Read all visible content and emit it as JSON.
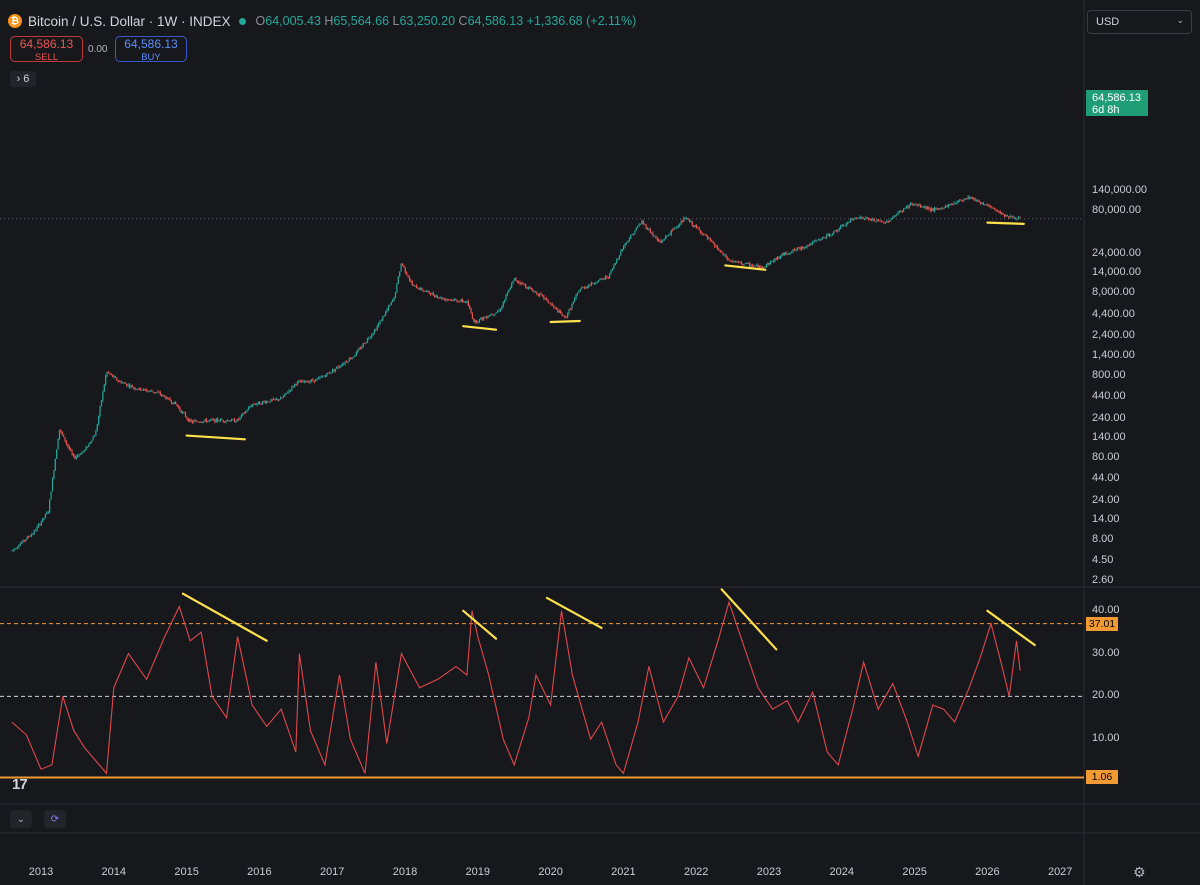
{
  "header": {
    "symbol": "Bitcoin / U.S. Dollar · 1W · INDEX",
    "open_key": "O",
    "open": "64,005.43",
    "high_key": "H",
    "high": "65,564.66",
    "low_key": "L",
    "low": "63,250.20",
    "close_key": "C",
    "close": "64,586.13",
    "change": "+1,336.68 (+2.11%)"
  },
  "trade": {
    "sell_price": "64,586.13",
    "sell_label": "SELL",
    "spread": "0.00",
    "buy_price": "64,586.13",
    "buy_label": "BUY"
  },
  "indicators_count": "6",
  "currency": "USD",
  "logo_text": "17",
  "price_tag": {
    "price": "64,586.13",
    "countdown": "6d 8h"
  },
  "colors": {
    "up": "#26a69a",
    "down": "#ef5350",
    "annotation": "#ffe14d",
    "level": "#f19933",
    "background": "#17181c"
  },
  "chart_data": [
    {
      "type": "candlestick",
      "scale": "log",
      "x_range": [
        2012.6,
        2027.5
      ],
      "y_ticks": [
        "140,000.00",
        "80,000.00",
        "24,000.00",
        "14,000.00",
        "8,000.00",
        "4,400.00",
        "2,400.00",
        "1,400.00",
        "800.00",
        "440.00",
        "240.00",
        "140.00",
        "80.00",
        "44.00",
        "24.00",
        "14.00",
        "8.00",
        "4.50",
        "2.60"
      ],
      "last_price": 64586.13,
      "price_path": [
        [
          2012.6,
          6
        ],
        [
          2012.9,
          10
        ],
        [
          2013.1,
          18
        ],
        [
          2013.25,
          180
        ],
        [
          2013.45,
          80
        ],
        [
          2013.6,
          100
        ],
        [
          2013.75,
          160
        ],
        [
          2013.9,
          900
        ],
        [
          2014.05,
          700
        ],
        [
          2014.3,
          560
        ],
        [
          2014.6,
          500
        ],
        [
          2014.85,
          360
        ],
        [
          2015.05,
          220
        ],
        [
          2015.4,
          230
        ],
        [
          2015.7,
          230
        ],
        [
          2015.9,
          360
        ],
        [
          2016.3,
          420
        ],
        [
          2016.5,
          650
        ],
        [
          2016.8,
          720
        ],
        [
          2017.0,
          920
        ],
        [
          2017.3,
          1400
        ],
        [
          2017.6,
          3000
        ],
        [
          2017.85,
          7000
        ],
        [
          2017.95,
          19000
        ],
        [
          2018.1,
          10000
        ],
        [
          2018.5,
          7000
        ],
        [
          2018.85,
          6300
        ],
        [
          2018.95,
          3600
        ],
        [
          2019.3,
          5000
        ],
        [
          2019.5,
          12000
        ],
        [
          2019.9,
          7200
        ],
        [
          2020.2,
          4000
        ],
        [
          2020.4,
          9000
        ],
        [
          2020.8,
          13000
        ],
        [
          2021.0,
          30000
        ],
        [
          2021.25,
          60000
        ],
        [
          2021.5,
          33000
        ],
        [
          2021.85,
          66000
        ],
        [
          2022.1,
          42000
        ],
        [
          2022.45,
          20000
        ],
        [
          2022.9,
          16500
        ],
        [
          2023.2,
          24000
        ],
        [
          2023.5,
          30000
        ],
        [
          2023.85,
          42000
        ],
        [
          2024.2,
          68000
        ],
        [
          2024.6,
          58000
        ],
        [
          2024.95,
          98000
        ],
        [
          2025.3,
          82000
        ],
        [
          2025.75,
          120000
        ],
        [
          2026.05,
          88000
        ],
        [
          2026.3,
          68000
        ],
        [
          2026.45,
          64586.13
        ]
      ],
      "annotations": [
        {
          "from": [
            2015.0,
            150
          ],
          "to": [
            2015.8,
            135
          ]
        },
        {
          "from": [
            2018.8,
            3200
          ],
          "to": [
            2019.25,
            2900
          ]
        },
        {
          "from": [
            2020.0,
            3600
          ],
          "to": [
            2020.4,
            3700
          ]
        },
        {
          "from": [
            2022.4,
            17500
          ],
          "to": [
            2022.95,
            15500
          ]
        },
        {
          "from": [
            2026.0,
            58000
          ],
          "to": [
            2026.5,
            56000
          ]
        }
      ]
    },
    {
      "type": "line",
      "series": [
        {
          "values": [
            [
              2012.6,
              14
            ],
            [
              2012.8,
              11
            ],
            [
              2013.0,
              3
            ],
            [
              2013.15,
              4
            ],
            [
              2013.3,
              20
            ],
            [
              2013.45,
              12
            ],
            [
              2013.6,
              8
            ],
            [
              2013.75,
              5
            ],
            [
              2013.9,
              2
            ],
            [
              2014.0,
              22
            ],
            [
              2014.2,
              30
            ],
            [
              2014.45,
              24
            ],
            [
              2014.7,
              34
            ],
            [
              2014.9,
              41
            ],
            [
              2015.05,
              33
            ],
            [
              2015.2,
              35
            ],
            [
              2015.35,
              20
            ],
            [
              2015.55,
              15
            ],
            [
              2015.7,
              34
            ],
            [
              2015.9,
              18
            ],
            [
              2016.1,
              13
            ],
            [
              2016.3,
              17
            ],
            [
              2016.5,
              7
            ],
            [
              2016.55,
              30
            ],
            [
              2016.7,
              12
            ],
            [
              2016.9,
              4
            ],
            [
              2017.1,
              25
            ],
            [
              2017.25,
              10
            ],
            [
              2017.45,
              2
            ],
            [
              2017.6,
              28
            ],
            [
              2017.75,
              9
            ],
            [
              2017.95,
              30
            ],
            [
              2018.2,
              22
            ],
            [
              2018.45,
              24
            ],
            [
              2018.7,
              27
            ],
            [
              2018.85,
              25
            ],
            [
              2018.92,
              40
            ],
            [
              2019.0,
              34
            ],
            [
              2019.15,
              25
            ],
            [
              2019.35,
              10
            ],
            [
              2019.5,
              4
            ],
            [
              2019.7,
              15
            ],
            [
              2019.8,
              25
            ],
            [
              2020.0,
              18
            ],
            [
              2020.15,
              40
            ],
            [
              2020.3,
              25
            ],
            [
              2020.55,
              10
            ],
            [
              2020.7,
              14
            ],
            [
              2020.9,
              4
            ],
            [
              2021.0,
              2
            ],
            [
              2021.2,
              14
            ],
            [
              2021.35,
              27
            ],
            [
              2021.55,
              14
            ],
            [
              2021.75,
              20
            ],
            [
              2021.9,
              29
            ],
            [
              2022.1,
              22
            ],
            [
              2022.3,
              33
            ],
            [
              2022.45,
              42
            ],
            [
              2022.65,
              32
            ],
            [
              2022.85,
              22
            ],
            [
              2023.05,
              17
            ],
            [
              2023.25,
              19
            ],
            [
              2023.4,
              14
            ],
            [
              2023.6,
              21
            ],
            [
              2023.8,
              7
            ],
            [
              2023.95,
              4
            ],
            [
              2024.15,
              17
            ],
            [
              2024.3,
              28
            ],
            [
              2024.5,
              17
            ],
            [
              2024.7,
              23
            ],
            [
              2024.9,
              14
            ],
            [
              2025.05,
              6
            ],
            [
              2025.25,
              18
            ],
            [
              2025.4,
              17
            ],
            [
              2025.55,
              14
            ],
            [
              2025.75,
              22
            ],
            [
              2025.9,
              29
            ],
            [
              2026.05,
              37
            ],
            [
              2026.2,
              27
            ],
            [
              2026.3,
              20
            ],
            [
              2026.4,
              33
            ],
            [
              2026.45,
              26
            ]
          ]
        }
      ],
      "y_ticks": [
        "40.00",
        "30.00",
        "20.00",
        "10.00"
      ],
      "levels": [
        {
          "label": "37.01",
          "value": 37.01,
          "style": "dashed"
        },
        {
          "value": 20,
          "style": "dashed"
        },
        {
          "label": "1.06",
          "value": 1.06,
          "style": "solid"
        }
      ],
      "annotations": [
        {
          "from": [
            2014.95,
            44
          ],
          "to": [
            2016.1,
            33
          ]
        },
        {
          "from": [
            2018.8,
            40
          ],
          "to": [
            2019.25,
            33.5
          ]
        },
        {
          "from": [
            2019.95,
            43
          ],
          "to": [
            2020.7,
            36
          ]
        },
        {
          "from": [
            2022.35,
            45
          ],
          "to": [
            2023.1,
            31
          ]
        },
        {
          "from": [
            2026.0,
            40
          ],
          "to": [
            2026.65,
            32
          ]
        }
      ]
    }
  ],
  "x_ticks": [
    "2013",
    "2014",
    "2015",
    "2016",
    "2017",
    "2018",
    "2019",
    "2020",
    "2021",
    "2022",
    "2023",
    "2024",
    "2025",
    "2026",
    "2027"
  ]
}
